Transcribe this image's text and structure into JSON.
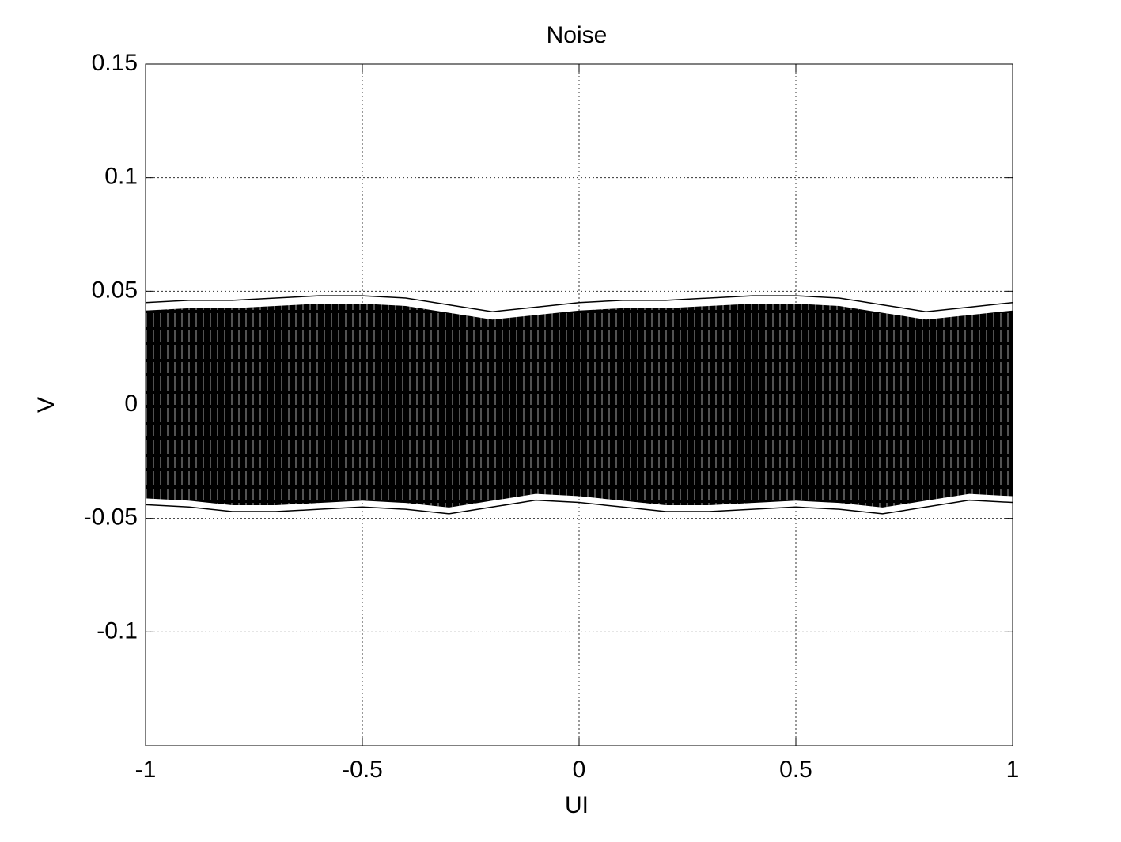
{
  "chart_data": {
    "type": "band",
    "title": "Noise",
    "x_label": "UI",
    "y_label": "V",
    "x": [
      -1,
      -0.9,
      -0.8,
      -0.7,
      -0.6,
      -0.5,
      -0.4,
      -0.3,
      -0.2,
      -0.1,
      0,
      0.1,
      0.2,
      0.3,
      0.4,
      0.5,
      0.6,
      0.7,
      0.8,
      0.9,
      1
    ],
    "upper": [
      0.045,
      0.046,
      0.046,
      0.047,
      0.048,
      0.048,
      0.047,
      0.044,
      0.041,
      0.043,
      0.045,
      0.046,
      0.046,
      0.047,
      0.048,
      0.048,
      0.047,
      0.044,
      0.041,
      0.043,
      0.045
    ],
    "lower": [
      -0.044,
      -0.045,
      -0.047,
      -0.047,
      -0.046,
      -0.045,
      -0.046,
      -0.048,
      -0.045,
      -0.042,
      -0.043,
      -0.045,
      -0.047,
      -0.047,
      -0.046,
      -0.045,
      -0.046,
      -0.048,
      -0.045,
      -0.042,
      -0.043
    ],
    "color": "#000000",
    "xlim": [
      -1,
      1
    ],
    "xticks": [
      -1,
      -0.5,
      0,
      0.5,
      1
    ],
    "ylim": [
      -0.15,
      0.15
    ],
    "yticks": [
      -0.1,
      -0.05,
      0,
      0.05,
      0.1,
      0.15
    ],
    "grid": true
  }
}
